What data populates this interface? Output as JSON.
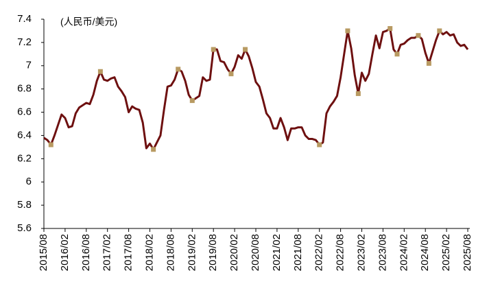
{
  "chart_data": {
    "type": "line",
    "annotation": "(人民币/美元)",
    "categories": [
      "2015/08",
      null,
      null,
      null,
      null,
      null,
      "2016/02",
      null,
      null,
      null,
      null,
      null,
      "2016/08",
      null,
      null,
      null,
      null,
      null,
      "2017/02",
      null,
      null,
      null,
      null,
      null,
      "2017/08",
      null,
      null,
      null,
      null,
      null,
      "2018/02",
      null,
      null,
      null,
      null,
      null,
      "2018/08",
      null,
      null,
      null,
      null,
      null,
      "2019/02",
      null,
      null,
      null,
      null,
      null,
      "2019/08",
      null,
      null,
      null,
      null,
      null,
      "2020/02",
      null,
      null,
      null,
      null,
      null,
      "2020/08",
      null,
      null,
      null,
      null,
      null,
      "2021/02",
      null,
      null,
      null,
      null,
      null,
      "2021/08",
      null,
      null,
      null,
      null,
      null,
      "2022/02",
      null,
      null,
      null,
      null,
      null,
      "2022/08",
      null,
      null,
      null,
      null,
      null,
      "2023/02",
      null,
      null,
      null,
      null,
      null,
      "2023/08",
      null,
      null,
      null,
      null,
      null,
      "2024/02",
      null,
      null,
      null,
      null,
      null,
      "2024/08",
      null,
      null,
      null,
      null,
      null,
      "2025/02",
      null,
      null,
      null,
      null,
      null,
      "2025/08"
    ],
    "series": [
      {
        "color": "#6e1010",
        "values": [
          6.38,
          6.36,
          6.32,
          6.4,
          6.49,
          6.58,
          6.55,
          6.47,
          6.48,
          6.59,
          6.64,
          6.66,
          6.68,
          6.67,
          6.75,
          6.87,
          6.95,
          6.88,
          6.87,
          6.89,
          6.9,
          6.82,
          6.78,
          6.73,
          6.6,
          6.65,
          6.63,
          6.62,
          6.51,
          6.29,
          6.33,
          6.28,
          6.34,
          6.4,
          6.62,
          6.82,
          6.83,
          6.88,
          6.97,
          6.95,
          6.87,
          6.75,
          6.7,
          6.72,
          6.74,
          6.9,
          6.87,
          6.88,
          7.14,
          7.14,
          7.04,
          7.03,
          6.97,
          6.93,
          6.99,
          7.09,
          7.06,
          7.14,
          7.08,
          6.98,
          6.86,
          6.82,
          6.71,
          6.59,
          6.55,
          6.46,
          6.46,
          6.55,
          6.47,
          6.36,
          6.46,
          6.46,
          6.47,
          6.47,
          6.4,
          6.37,
          6.37,
          6.36,
          6.32,
          6.34,
          6.59,
          6.65,
          6.69,
          6.74,
          6.9,
          7.1,
          7.3,
          7.15,
          6.92,
          6.76,
          6.94,
          6.87,
          6.93,
          7.1,
          7.26,
          7.15,
          7.29,
          7.3,
          7.32,
          7.14,
          7.1,
          7.18,
          7.19,
          7.22,
          7.24,
          7.24,
          7.26,
          7.23,
          7.11,
          7.02,
          7.12,
          7.22,
          7.3,
          7.27,
          7.29,
          7.26,
          7.27,
          7.2,
          7.17,
          7.18,
          7.14
        ]
      },
      {
        "color": "#b89a62",
        "marker": "square",
        "values": [
          null,
          null,
          6.32,
          null,
          null,
          null,
          null,
          null,
          null,
          null,
          null,
          null,
          null,
          null,
          null,
          null,
          6.95,
          null,
          null,
          null,
          null,
          null,
          null,
          null,
          null,
          null,
          null,
          null,
          null,
          null,
          null,
          6.28,
          null,
          null,
          null,
          null,
          null,
          null,
          6.97,
          null,
          null,
          null,
          6.7,
          null,
          null,
          null,
          null,
          null,
          7.14,
          null,
          null,
          null,
          null,
          6.93,
          null,
          null,
          null,
          7.14,
          null,
          null,
          null,
          null,
          null,
          null,
          null,
          null,
          null,
          null,
          null,
          null,
          null,
          null,
          null,
          null,
          null,
          null,
          null,
          null,
          6.32,
          null,
          null,
          null,
          null,
          null,
          null,
          null,
          7.3,
          null,
          null,
          6.76,
          null,
          null,
          null,
          null,
          null,
          null,
          null,
          null,
          7.32,
          null,
          7.1,
          null,
          null,
          null,
          null,
          null,
          7.26,
          null,
          null,
          7.02,
          null,
          null,
          7.3,
          null,
          null,
          null,
          null,
          null,
          null,
          null,
          null
        ]
      }
    ],
    "ylim": [
      5.6,
      7.4
    ],
    "yticks": [
      5.6,
      5.8,
      6,
      6.2,
      6.4,
      6.6,
      6.8,
      7,
      7.2,
      7.4
    ],
    "grid": false
  }
}
